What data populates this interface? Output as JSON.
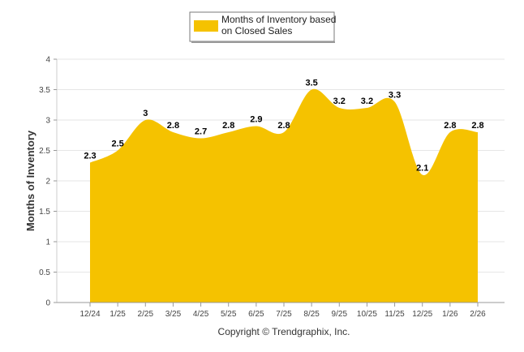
{
  "chart_data": {
    "type": "area",
    "series": [
      {
        "name": "Months of Inventory based on Closed Sales",
        "color": "#F5C200",
        "values": [
          2.3,
          2.5,
          3,
          2.8,
          2.7,
          2.8,
          2.9,
          2.8,
          3.5,
          3.2,
          3.2,
          3.3,
          2.1,
          2.8,
          2.8
        ]
      }
    ],
    "categories": [
      "12/24",
      "1/25",
      "2/25",
      "3/25",
      "4/25",
      "5/25",
      "6/25",
      "7/25",
      "8/25",
      "9/25",
      "10/25",
      "11/25",
      "12/25",
      "1/26",
      "2/26"
    ],
    "data_labels": [
      "2.3",
      "2.5",
      "3",
      "2.8",
      "2.7",
      "2.8",
      "2.9",
      "2.8",
      "3.5",
      "3.2",
      "3.2",
      "3.3",
      "2.1",
      "2.8",
      "2.8"
    ],
    "ylabel": "Months of Inventory",
    "xlabel": "",
    "ylim": [
      0,
      4
    ],
    "yticks": [
      0,
      0.5,
      1,
      1.5,
      2,
      2.5,
      3,
      3.5,
      4
    ],
    "ytick_labels": [
      "0",
      "0.5",
      "1",
      "1.5",
      "2",
      "2.5",
      "3",
      "3.5",
      "4"
    ],
    "grid": true,
    "legend": {
      "position": "top-center",
      "line1": "Months of Inventory based",
      "line2": "on Closed Sales"
    },
    "credit": "Copyright © Trendgraphix, Inc."
  }
}
